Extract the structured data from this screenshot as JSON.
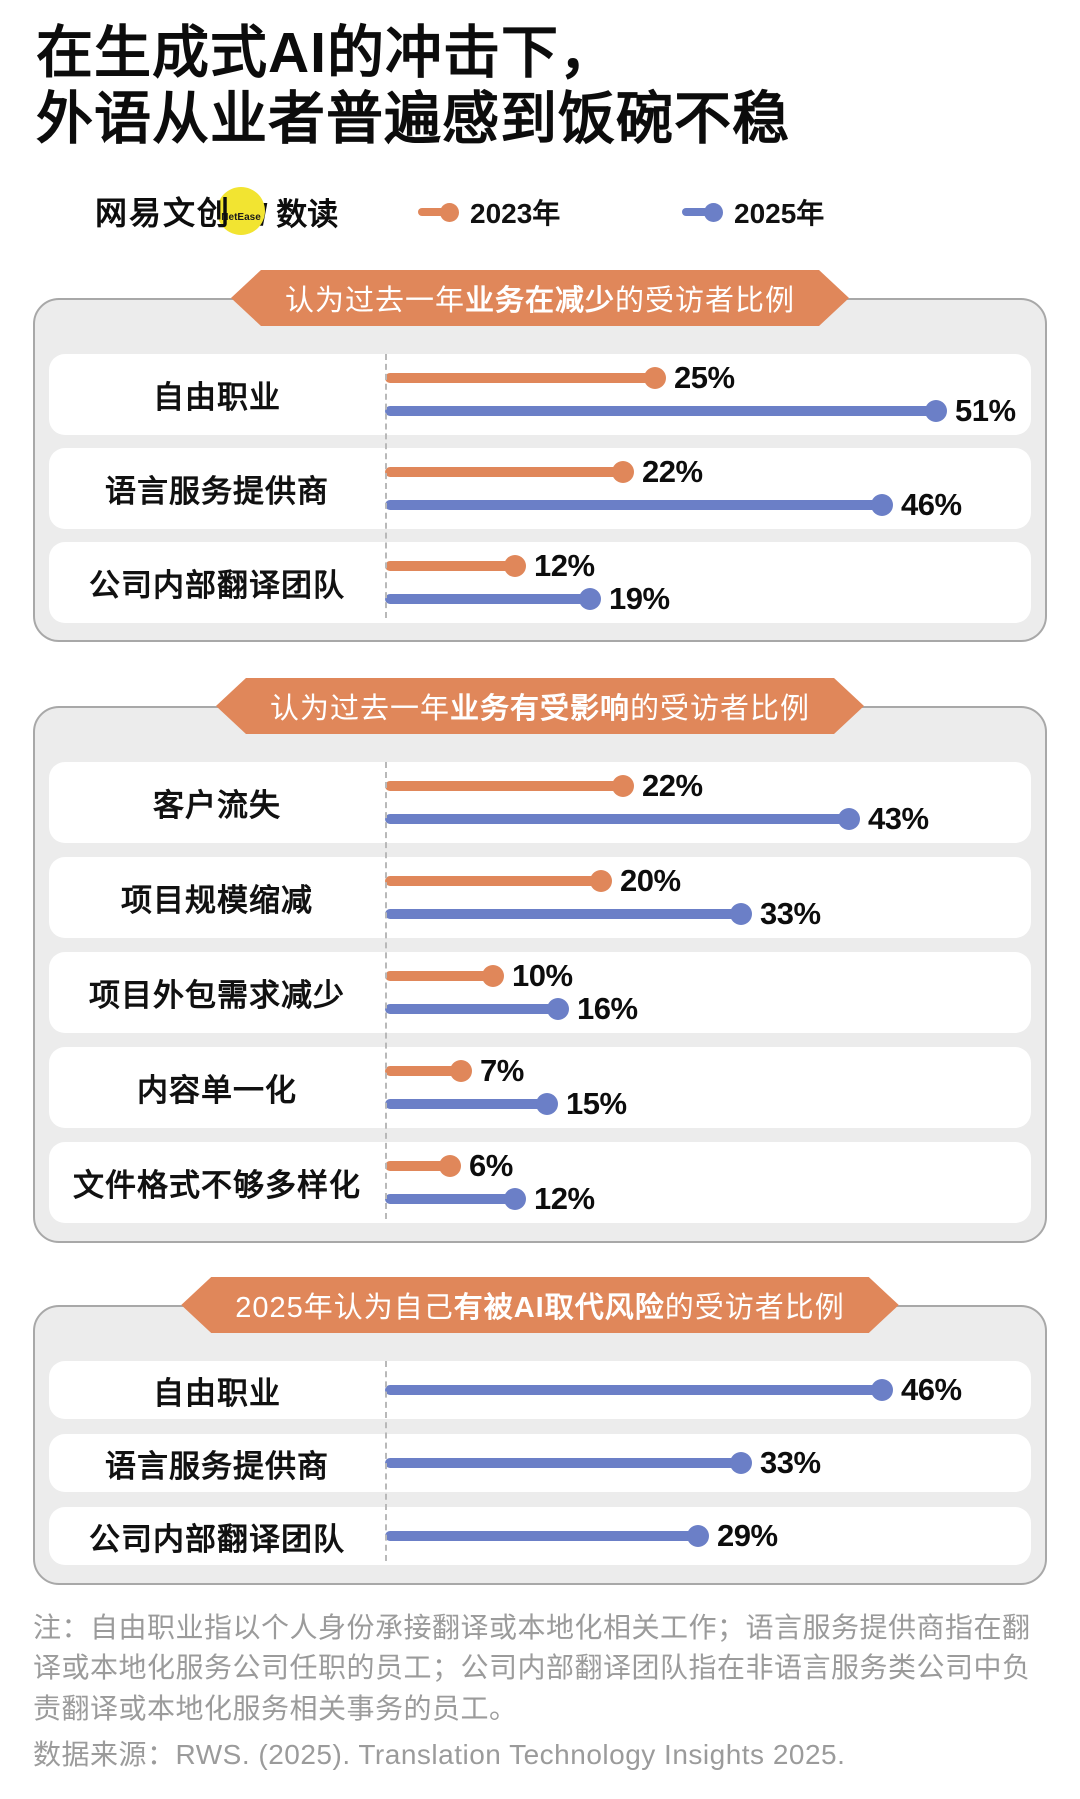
{
  "title": {
    "line1": "在生成式AI的冲击下，",
    "line2": "外语从业者普遍感到饭碗不稳"
  },
  "brand": {
    "name": "网易文创",
    "badge": "NetEase",
    "divider": "/",
    "sub": "数读"
  },
  "legend": [
    {
      "label": "2023年",
      "key": "y2023"
    },
    {
      "label": "2025年",
      "key": "y2025"
    }
  ],
  "colors": {
    "y2023": "#E0875A",
    "y2025": "#6B7FC7",
    "panel_bg": "#ECECEC",
    "panel_border": "#A8A8A8",
    "note_gray": "#9B9B9B",
    "badge_yellow": "#F2E431"
  },
  "sections": [
    {
      "header": {
        "pre": "认为过去一年",
        "bold": "业务在减少",
        "post": "的受访者比例"
      },
      "rows": [
        {
          "label": "自由职业",
          "marks": [
            {
              "series": "y2023",
              "value": 25,
              "display": "25%"
            },
            {
              "series": "y2025",
              "value": 51,
              "display": "51%"
            }
          ]
        },
        {
          "label": "语言服务提供商",
          "marks": [
            {
              "series": "y2023",
              "value": 22,
              "display": "22%"
            },
            {
              "series": "y2025",
              "value": 46,
              "display": "46%"
            }
          ]
        },
        {
          "label": "公司内部翻译团队",
          "marks": [
            {
              "series": "y2023",
              "value": 12,
              "display": "12%"
            },
            {
              "series": "y2025",
              "value": 19,
              "display": "19%"
            }
          ]
        }
      ]
    },
    {
      "header": {
        "pre": "认为过去一年",
        "bold": "业务有受影响",
        "post": "的受访者比例"
      },
      "rows": [
        {
          "label": "客户流失",
          "marks": [
            {
              "series": "y2023",
              "value": 22,
              "display": "22%"
            },
            {
              "series": "y2025",
              "value": 43,
              "display": "43%"
            }
          ]
        },
        {
          "label": "项目规模缩减",
          "marks": [
            {
              "series": "y2023",
              "value": 20,
              "display": "20%"
            },
            {
              "series": "y2025",
              "value": 33,
              "display": "33%"
            }
          ]
        },
        {
          "label": "项目外包需求减少",
          "marks": [
            {
              "series": "y2023",
              "value": 10,
              "display": "10%"
            },
            {
              "series": "y2025",
              "value": 16,
              "display": "16%"
            }
          ]
        },
        {
          "label": "内容单一化",
          "marks": [
            {
              "series": "y2023",
              "value": 7,
              "display": "7%"
            },
            {
              "series": "y2025",
              "value": 15,
              "display": "15%"
            }
          ]
        },
        {
          "label": "文件格式不够多样化",
          "marks": [
            {
              "series": "y2023",
              "value": 6,
              "display": "6%"
            },
            {
              "series": "y2025",
              "value": 12,
              "display": "12%"
            }
          ]
        }
      ]
    },
    {
      "header": {
        "pre": "2025年认为自己",
        "bold": "有被AI取代风险",
        "post": "的受访者比例"
      },
      "rows": [
        {
          "label": "自由职业",
          "marks": [
            {
              "series": "y2025",
              "value": 46,
              "display": "46%"
            }
          ]
        },
        {
          "label": "语言服务提供商",
          "marks": [
            {
              "series": "y2025",
              "value": 33,
              "display": "33%"
            }
          ]
        },
        {
          "label": "公司内部翻译团队",
          "marks": [
            {
              "series": "y2025",
              "value": 29,
              "display": "29%"
            }
          ]
        }
      ]
    }
  ],
  "notes": {
    "definition": "注：自由职业指以个人身份承接翻译或本地化相关工作；语言服务提供商指在翻译或本地化服务公司任职的员工；公司内部翻译团队指在非语言服务类公司中负责翻译或本地化服务相关事务的员工。",
    "source": "数据来源：RWS. (2025). Translation Technology Insights 2025."
  },
  "chart_data": [
    {
      "type": "bar",
      "orientation": "horizontal",
      "title": "认为过去一年业务在减少的受访者比例",
      "categories": [
        "自由职业",
        "语言服务提供商",
        "公司内部翻译团队"
      ],
      "series": [
        {
          "name": "2023年",
          "values": [
            25,
            22,
            12
          ]
        },
        {
          "name": "2025年",
          "values": [
            51,
            46,
            19
          ]
        }
      ],
      "unit": "%",
      "xlim": [
        0,
        55
      ],
      "legend_position": "top",
      "grid": false
    },
    {
      "type": "bar",
      "orientation": "horizontal",
      "title": "认为过去一年业务有受影响的受访者比例",
      "categories": [
        "客户流失",
        "项目规模缩减",
        "项目外包需求减少",
        "内容单一化",
        "文件格式不够多样化"
      ],
      "series": [
        {
          "name": "2023年",
          "values": [
            22,
            20,
            10,
            7,
            6
          ]
        },
        {
          "name": "2025年",
          "values": [
            43,
            33,
            16,
            15,
            12
          ]
        }
      ],
      "unit": "%",
      "xlim": [
        0,
        55
      ],
      "legend_position": "top",
      "grid": false
    },
    {
      "type": "bar",
      "orientation": "horizontal",
      "title": "2025年认为自己有被AI取代风险的受访者比例",
      "categories": [
        "自由职业",
        "语言服务提供商",
        "公司内部翻译团队"
      ],
      "series": [
        {
          "name": "2025年",
          "values": [
            46,
            33,
            29
          ]
        }
      ],
      "unit": "%",
      "xlim": [
        0,
        55
      ],
      "legend_position": "top",
      "grid": false
    }
  ]
}
